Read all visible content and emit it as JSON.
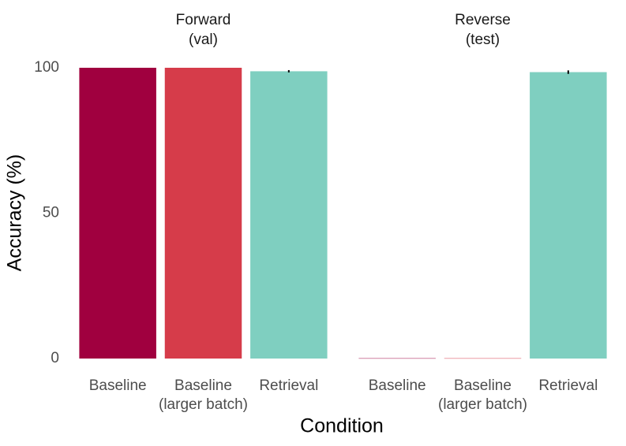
{
  "ylabel": "Accuracy (%)",
  "xlabel": "Condition",
  "chart_data": [
    {
      "type": "bar",
      "title": [
        "Forward",
        "(val)"
      ],
      "categories": [
        [
          "Baseline"
        ],
        [
          "Baseline",
          "(larger batch)"
        ],
        [
          "Retrieval"
        ]
      ],
      "values": [
        100,
        100,
        98.8
      ],
      "errors": [
        null,
        null,
        0.4
      ],
      "colors": [
        "#a0003f",
        "#d63c4a",
        "#7fcfc0"
      ],
      "ylim": [
        0,
        100
      ],
      "yticks": [
        0,
        50,
        100
      ],
      "grid": false
    },
    {
      "type": "bar",
      "title": [
        "Reverse",
        "(test)"
      ],
      "categories": [
        [
          "Baseline"
        ],
        [
          "Baseline",
          "(larger batch)"
        ],
        [
          "Retrieval"
        ]
      ],
      "values": [
        0.1,
        0.1,
        98.5
      ],
      "errors": [
        null,
        null,
        0.6
      ],
      "colors": [
        "#a0003f",
        "#d63c4a",
        "#7fcfc0"
      ],
      "ylim": [
        0,
        100
      ],
      "grid": false
    }
  ]
}
